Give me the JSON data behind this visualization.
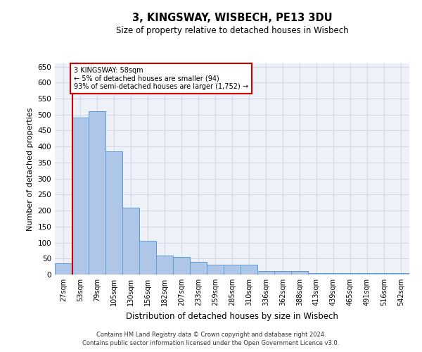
{
  "title": "3, KINGSWAY, WISBECH, PE13 3DU",
  "subtitle": "Size of property relative to detached houses in Wisbech",
  "xlabel": "Distribution of detached houses by size in Wisbech",
  "ylabel": "Number of detached properties",
  "footer_line1": "Contains HM Land Registry data © Crown copyright and database right 2024.",
  "footer_line2": "Contains public sector information licensed under the Open Government Licence v3.0.",
  "bin_labels": [
    "27sqm",
    "53sqm",
    "79sqm",
    "105sqm",
    "130sqm",
    "156sqm",
    "182sqm",
    "207sqm",
    "233sqm",
    "259sqm",
    "285sqm",
    "310sqm",
    "336sqm",
    "362sqm",
    "388sqm",
    "413sqm",
    "439sqm",
    "465sqm",
    "491sqm",
    "516sqm",
    "542sqm"
  ],
  "bar_values": [
    35,
    490,
    510,
    385,
    210,
    105,
    60,
    55,
    40,
    30,
    30,
    30,
    10,
    10,
    10,
    5,
    5,
    5,
    5,
    5,
    5
  ],
  "bar_color": "#aec6e8",
  "bar_edge_color": "#5a9bd5",
  "grid_color": "#d0d8e8",
  "background_color": "#eef2f8",
  "vline_color": "#cc0000",
  "annotation_text": "3 KINGSWAY: 58sqm\n← 5% of detached houses are smaller (94)\n93% of semi-detached houses are larger (1,752) →",
  "annotation_box_color": "#ffffff",
  "annotation_box_edge": "#cc0000",
  "ylim": [
    0,
    660
  ],
  "yticks": [
    0,
    50,
    100,
    150,
    200,
    250,
    300,
    350,
    400,
    450,
    500,
    550,
    600,
    650
  ]
}
